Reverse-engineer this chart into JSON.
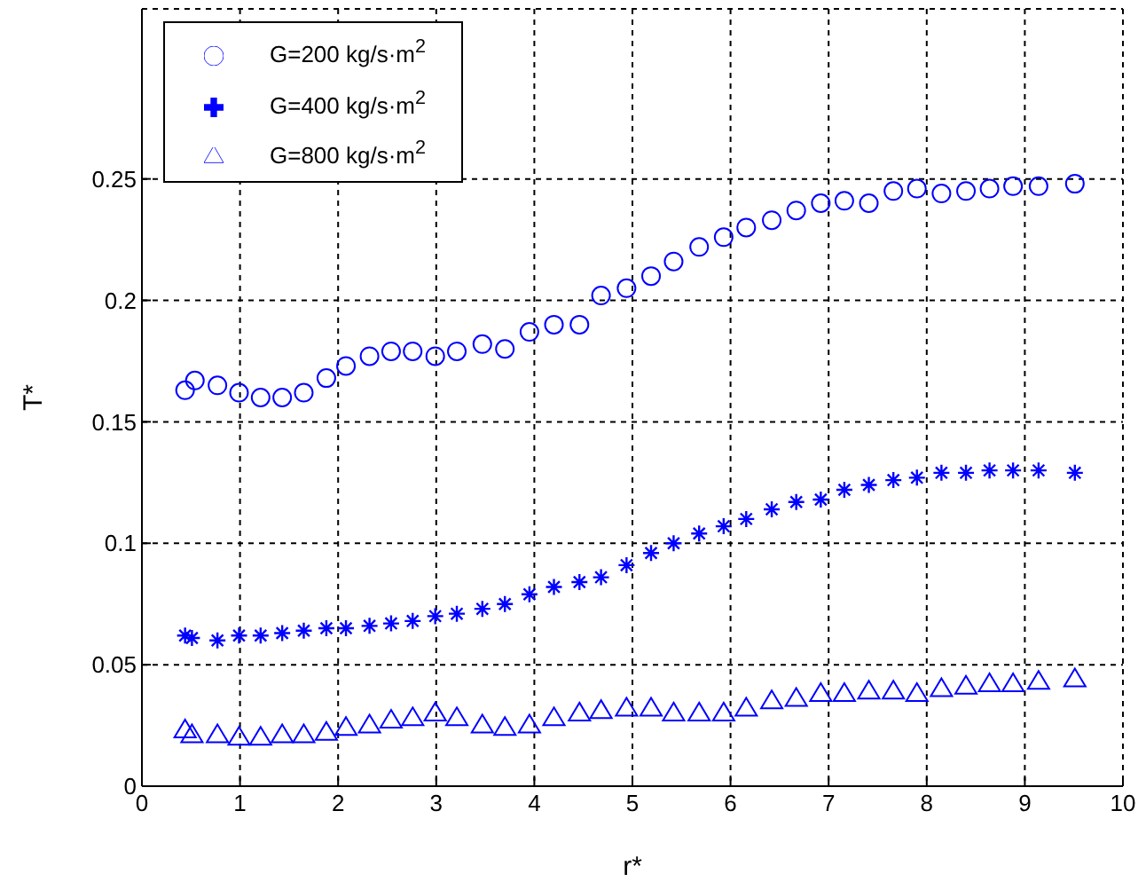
{
  "chart_data": {
    "type": "scatter",
    "xlabel": "r*",
    "ylabel": "T*",
    "xlim": [
      0,
      10
    ],
    "xticks": [
      0,
      1,
      2,
      3,
      4,
      5,
      6,
      7,
      8,
      9,
      10
    ],
    "ylim": [
      0,
      0.32
    ],
    "yticks": [
      0,
      0.05,
      0.1,
      0.15,
      0.2,
      0.25
    ],
    "grid": true,
    "legend": "top left",
    "series": [
      {
        "name": "G=200 kg/s·m$^{2}$",
        "color": "#0000ff",
        "marker": "circle",
        "x": [
          0.44,
          0.54,
          0.77,
          0.99,
          1.21,
          1.43,
          1.65,
          1.88,
          2.08,
          2.32,
          2.54,
          2.76,
          2.99,
          3.21,
          3.47,
          3.7,
          3.95,
          4.2,
          4.46,
          4.68,
          4.94,
          5.19,
          5.42,
          5.68,
          5.93,
          6.16,
          6.42,
          6.67,
          6.92,
          7.16,
          7.41,
          7.66,
          7.9,
          8.15,
          8.4,
          8.64,
          8.88,
          9.14,
          9.51
        ],
        "values": [
          0.163,
          0.167,
          0.165,
          0.162,
          0.16,
          0.16,
          0.162,
          0.168,
          0.173,
          0.177,
          0.179,
          0.179,
          0.177,
          0.179,
          0.182,
          0.18,
          0.187,
          0.19,
          0.19,
          0.202,
          0.205,
          0.21,
          0.216,
          0.222,
          0.226,
          0.23,
          0.233,
          0.237,
          0.24,
          0.241,
          0.24,
          0.245,
          0.246,
          0.244,
          0.245,
          0.246,
          0.247,
          0.247,
          0.248
        ]
      },
      {
        "name": "G=400 kg/s·m$^{2}$",
        "color": "#0000ff",
        "marker": "cross",
        "x": [
          0.44,
          0.51,
          0.77,
          0.99,
          1.21,
          1.43,
          1.65,
          1.88,
          2.08,
          2.32,
          2.54,
          2.76,
          2.99,
          3.21,
          3.47,
          3.7,
          3.95,
          4.2,
          4.46,
          4.68,
          4.94,
          5.19,
          5.42,
          5.68,
          5.93,
          6.16,
          6.42,
          6.67,
          6.92,
          7.16,
          7.41,
          7.66,
          7.9,
          8.15,
          8.4,
          8.64,
          8.88,
          9.14,
          9.51
        ],
        "values": [
          0.062,
          0.061,
          0.06,
          0.062,
          0.062,
          0.063,
          0.064,
          0.065,
          0.065,
          0.066,
          0.067,
          0.068,
          0.07,
          0.071,
          0.073,
          0.075,
          0.079,
          0.082,
          0.084,
          0.086,
          0.091,
          0.096,
          0.1,
          0.104,
          0.107,
          0.11,
          0.114,
          0.117,
          0.118,
          0.122,
          0.124,
          0.126,
          0.127,
          0.129,
          0.129,
          0.13,
          0.13,
          0.13,
          0.129
        ]
      },
      {
        "name": "G=800 kg/s·m$^{2}$",
        "color": "#0000ff",
        "marker": "triangle",
        "x": [
          0.44,
          0.51,
          0.77,
          0.99,
          1.21,
          1.43,
          1.65,
          1.88,
          2.08,
          2.32,
          2.54,
          2.76,
          2.99,
          3.21,
          3.47,
          3.7,
          3.95,
          4.2,
          4.46,
          4.68,
          4.94,
          5.19,
          5.42,
          5.68,
          5.93,
          6.16,
          6.42,
          6.67,
          6.92,
          7.16,
          7.41,
          7.66,
          7.9,
          8.15,
          8.4,
          8.64,
          8.88,
          9.14,
          9.51
        ],
        "values": [
          0.023,
          0.021,
          0.021,
          0.02,
          0.02,
          0.021,
          0.021,
          0.022,
          0.024,
          0.025,
          0.027,
          0.028,
          0.03,
          0.028,
          0.025,
          0.024,
          0.025,
          0.028,
          0.03,
          0.031,
          0.032,
          0.032,
          0.03,
          0.03,
          0.03,
          0.032,
          0.035,
          0.036,
          0.038,
          0.038,
          0.039,
          0.039,
          0.038,
          0.04,
          0.041,
          0.042,
          0.042,
          0.043,
          0.044
        ]
      }
    ]
  }
}
